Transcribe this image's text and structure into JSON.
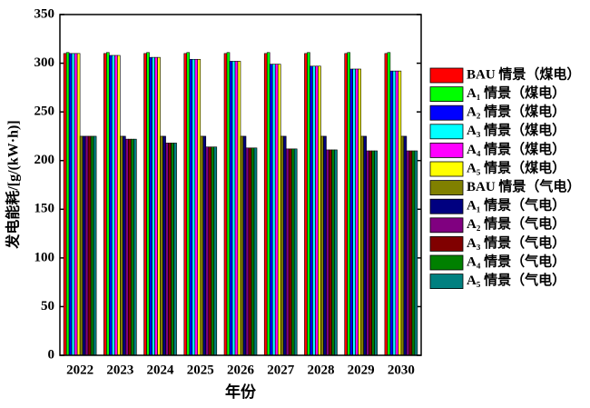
{
  "chart_data": {
    "type": "bar",
    "x_label": "年份",
    "y_label": "发电能耗/[g/(kW·h)]",
    "categories": [
      "2022",
      "2023",
      "2024",
      "2025",
      "2026",
      "2027",
      "2028",
      "2029",
      "2030"
    ],
    "ylim": [
      0,
      350
    ],
    "yticks": [
      0,
      50,
      100,
      150,
      200,
      250,
      300,
      350
    ],
    "legend_position": "right",
    "series": [
      {
        "name": "BAU 情景（煤电）",
        "color": "#ff0000",
        "values": [
          310,
          310,
          310,
          310,
          310,
          310,
          310,
          310,
          310
        ]
      },
      {
        "name": "A₁ 情景（煤电）",
        "color": "#00ff00",
        "values": [
          311,
          311,
          311,
          311,
          311,
          311,
          311,
          311,
          311
        ]
      },
      {
        "name": "A₂ 情景（煤电）",
        "color": "#0000ff",
        "values": [
          310,
          308,
          306,
          304,
          302,
          299,
          297,
          294,
          292
        ]
      },
      {
        "name": "A₃ 情景（煤电）",
        "color": "#00ffff",
        "values": [
          310,
          308,
          306,
          304,
          302,
          299,
          297,
          294,
          292
        ]
      },
      {
        "name": "A₄ 情景（煤电）",
        "color": "#ff00ff",
        "values": [
          310,
          308,
          306,
          304,
          302,
          299,
          297,
          294,
          292
        ]
      },
      {
        "name": "A₅ 情景（煤电）",
        "color": "#ffff00",
        "values": [
          310,
          308,
          306,
          304,
          302,
          299,
          297,
          294,
          292
        ]
      },
      {
        "name": "BAU 情景（气电）",
        "color": "#808000",
        "values": [
          225,
          225,
          225,
          225,
          225,
          225,
          225,
          225,
          225
        ]
      },
      {
        "name": "A₁ 情景（气电）",
        "color": "#000080",
        "values": [
          225,
          225,
          225,
          225,
          225,
          225,
          225,
          225,
          225
        ]
      },
      {
        "name": "A₂ 情景（气电）",
        "color": "#800080",
        "values": [
          225,
          222,
          218,
          214,
          213,
          212,
          211,
          210,
          210
        ]
      },
      {
        "name": "A₃ 情景（气电）",
        "color": "#800000",
        "values": [
          225,
          222,
          218,
          214,
          213,
          212,
          211,
          210,
          210
        ]
      },
      {
        "name": "A₄ 情景（气电）",
        "color": "#008000",
        "values": [
          225,
          222,
          218,
          214,
          213,
          212,
          211,
          210,
          210
        ]
      },
      {
        "name": "A₅ 情景（气电）",
        "color": "#008080",
        "values": [
          225,
          222,
          218,
          214,
          213,
          212,
          211,
          210,
          210
        ]
      }
    ]
  }
}
